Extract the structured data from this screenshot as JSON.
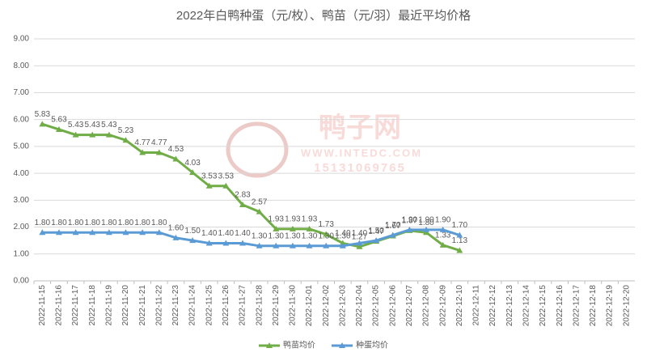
{
  "chart_data": {
    "type": "line",
    "title": "2022年白鸭种蛋（元/枚）、鸭苗（元/羽）最近平均价格",
    "watermark": {
      "name": "鸭子网",
      "url": "WWW.INTEDC.COM",
      "phone": "15131069765"
    },
    "categories": [
      "2022-11-15",
      "2022-11-16",
      "2022-11-17",
      "2022-11-18",
      "2022-11-19",
      "2022-11-20",
      "2022-11-21",
      "2022-11-22",
      "2022-11-23",
      "2022-11-24",
      "2022-11-25",
      "2022-11-26",
      "2022-11-27",
      "2022-11-28",
      "2022-11-29",
      "2022-11-30",
      "2022-12-01",
      "2022-12-02",
      "2022-12-03",
      "2022-12-04",
      "2022-12-05",
      "2022-12-06",
      "2022-12-07",
      "2022-12-08",
      "2022-12-09",
      "2022-12-10",
      "2022-12-11",
      "2022-12-12",
      "2022-12-13",
      "2022-12-14",
      "2022-12-15",
      "2022-12-16",
      "2022-12-17",
      "2022-12-18",
      "2022-12-19",
      "2022-12-20"
    ],
    "series": [
      {
        "name": "鸭苗均价",
        "color": "#70ad47",
        "values": [
          5.83,
          5.63,
          5.43,
          5.43,
          5.43,
          5.23,
          4.77,
          4.77,
          4.53,
          4.03,
          3.53,
          3.53,
          2.83,
          2.57,
          1.93,
          1.93,
          1.93,
          1.73,
          1.4,
          1.27,
          1.47,
          1.67,
          1.87,
          1.8,
          1.33,
          1.13,
          null,
          null,
          null,
          null,
          null,
          null,
          null,
          null,
          null,
          null
        ],
        "value_labels": [
          "5.83",
          "5.63",
          "5.43",
          "5.43",
          "5.43",
          "5.23",
          "4.77",
          "4.77",
          "4.53",
          "4.03",
          "3.53",
          "3.53",
          "2.83",
          "2.57",
          "1.93",
          "1.93",
          "1.93",
          "1.73",
          "1.40",
          "1.27",
          "1.47",
          "1.67",
          "1.87",
          "1.80",
          "1.33",
          "1.13",
          null,
          null,
          null,
          null,
          null,
          null,
          null,
          null,
          null,
          null
        ]
      },
      {
        "name": "种蛋均价",
        "color": "#5b9bd5",
        "values": [
          1.8,
          1.8,
          1.8,
          1.8,
          1.8,
          1.8,
          1.8,
          1.8,
          1.6,
          1.5,
          1.4,
          1.4,
          1.4,
          1.3,
          1.3,
          1.3,
          1.3,
          1.3,
          1.3,
          1.4,
          1.5,
          1.7,
          1.9,
          1.9,
          1.9,
          1.7,
          null,
          null,
          null,
          null,
          null,
          null,
          null,
          null,
          null,
          null
        ],
        "value_labels": [
          "1.80",
          "1.80",
          "1.80",
          "1.80",
          "1.80",
          "1.80",
          "1.80",
          "1.80",
          "1.60",
          "1.50",
          "1.40",
          "1.40",
          "1.40",
          "1.30",
          "1.30",
          "1.30",
          "1.30",
          "1.30",
          "1.30",
          "1.40",
          "1.50",
          "1.70",
          "1.90",
          "1.90",
          "1.90",
          "1.70",
          null,
          null,
          null,
          null,
          null,
          null,
          null,
          null,
          null,
          null
        ]
      }
    ],
    "ylim": [
      0,
      9
    ],
    "yticks": [
      {
        "value": 0,
        "label": "0.00"
      },
      {
        "value": 1,
        "label": "1.00"
      },
      {
        "value": 2,
        "label": "2.00"
      },
      {
        "value": 3,
        "label": "3.00"
      },
      {
        "value": 4,
        "label": "4.00"
      },
      {
        "value": 5,
        "label": "5.00"
      },
      {
        "value": 6,
        "label": "6.00"
      },
      {
        "value": 7,
        "label": "7.00"
      },
      {
        "value": 8,
        "label": "8.00"
      },
      {
        "value": 9,
        "label": "9.00"
      }
    ],
    "grid": true,
    "legend": "bottom"
  }
}
